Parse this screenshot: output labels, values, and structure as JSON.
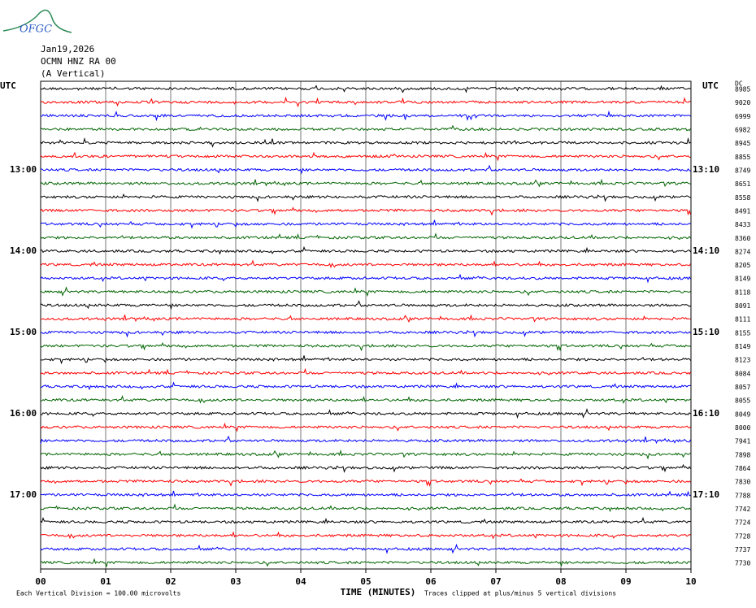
{
  "logo": "OFGC",
  "header": {
    "date": "Jan19,2026",
    "station": "OCMN HNZ RA 00",
    "component": "(A Vertical)"
  },
  "left_unit": "UTC",
  "right_unit": "UTC",
  "dc_header": "DC",
  "rows": [
    {
      "left": null,
      "right": null,
      "dc": "8985"
    },
    {
      "left": null,
      "right": null,
      "dc": "9020"
    },
    {
      "left": null,
      "right": null,
      "dc": "6999"
    },
    {
      "left": null,
      "right": null,
      "dc": "6982"
    },
    {
      "left": null,
      "right": null,
      "dc": "8945"
    },
    {
      "left": null,
      "right": null,
      "dc": "8855"
    },
    {
      "left": "13:00",
      "right": "13:10",
      "dc": "8749"
    },
    {
      "left": null,
      "right": null,
      "dc": "8651"
    },
    {
      "left": null,
      "right": null,
      "dc": "8558"
    },
    {
      "left": null,
      "right": null,
      "dc": "8491"
    },
    {
      "left": null,
      "right": null,
      "dc": "8433"
    },
    {
      "left": null,
      "right": null,
      "dc": "8360"
    },
    {
      "left": "14:00",
      "right": "14:10",
      "dc": "8274"
    },
    {
      "left": null,
      "right": null,
      "dc": "8205"
    },
    {
      "left": null,
      "right": null,
      "dc": "8149"
    },
    {
      "left": null,
      "right": null,
      "dc": "8118"
    },
    {
      "left": null,
      "right": null,
      "dc": "8091"
    },
    {
      "left": null,
      "right": null,
      "dc": "8111"
    },
    {
      "left": "15:00",
      "right": "15:10",
      "dc": "8155"
    },
    {
      "left": null,
      "right": null,
      "dc": "8149"
    },
    {
      "left": null,
      "right": null,
      "dc": "8123"
    },
    {
      "left": null,
      "right": null,
      "dc": "8084"
    },
    {
      "left": null,
      "right": null,
      "dc": "8057"
    },
    {
      "left": null,
      "right": null,
      "dc": "8055"
    },
    {
      "left": "16:00",
      "right": "16:10",
      "dc": "8049"
    },
    {
      "left": null,
      "right": null,
      "dc": "8000"
    },
    {
      "left": null,
      "right": null,
      "dc": "7941"
    },
    {
      "left": null,
      "right": null,
      "dc": "7898"
    },
    {
      "left": null,
      "right": null,
      "dc": "7864"
    },
    {
      "left": null,
      "right": null,
      "dc": "7830"
    },
    {
      "left": "17:00",
      "right": "17:10",
      "dc": "7788"
    },
    {
      "left": null,
      "right": null,
      "dc": "7742"
    },
    {
      "left": null,
      "right": null,
      "dc": "7724"
    },
    {
      "left": null,
      "right": null,
      "dc": "7728"
    },
    {
      "left": null,
      "right": null,
      "dc": "7737"
    },
    {
      "left": null,
      "right": null,
      "dc": "7730"
    }
  ],
  "trace_colors": [
    "#000000",
    "#ff0000",
    "#0000ff",
    "#006400"
  ],
  "x_ticks": [
    "00",
    "01",
    "02",
    "03",
    "04",
    "05",
    "06",
    "07",
    "08",
    "09",
    "10"
  ],
  "x_axis_label": "TIME (MINUTES)",
  "footer_left": "Each Vertical Division =  100.00 microvolts",
  "footer_right": "Traces clipped at plus/minus 5 vertical divisions"
}
